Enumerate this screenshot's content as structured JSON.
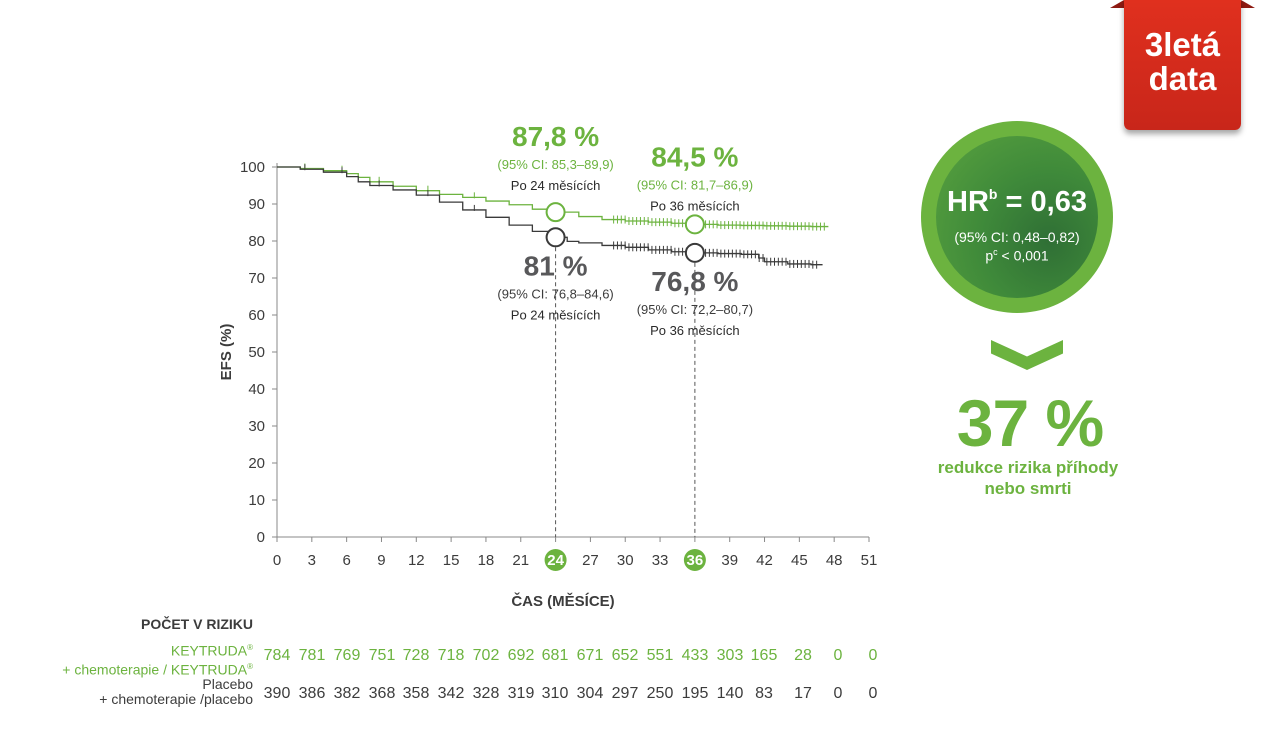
{
  "badge": {
    "line1": "3letá",
    "line2": "data"
  },
  "hr_box": {
    "hr_prefix": "HR",
    "hr_sup": "b",
    "hr_value": " = 0,63",
    "ci": "(95% CI: 0,48–0,82)",
    "p_prefix": "p",
    "p_sup": "c",
    "p_value": " < 0,001"
  },
  "reduction": {
    "value": "37 %",
    "line1": "redukce rizika příhody",
    "line2": "nebo smrti"
  },
  "risk_table": {
    "title": "POČET V RIZIKU",
    "keytruda_label_1": "KEYTRUDA",
    "keytruda_label_1_sup": "®",
    "keytruda_label_2": "+ chemoterapie / KEYTRUDA",
    "keytruda_label_2_sup": "®",
    "placebo_label_1": "Placebo",
    "placebo_label_2": "+ chemoterapie /placebo",
    "keytruda": [
      "784",
      "781",
      "769",
      "751",
      "728",
      "718",
      "702",
      "692",
      "681",
      "671",
      "652",
      "551",
      "433",
      "303",
      "165",
      "28",
      "0",
      "0"
    ],
    "placebo": [
      "390",
      "386",
      "382",
      "368",
      "358",
      "342",
      "328",
      "319",
      "310",
      "304",
      "297",
      "250",
      "195",
      "140",
      "83",
      "17",
      "0",
      "0"
    ]
  },
  "chart_data": {
    "type": "line",
    "xlabel": "ČAS (MĚSÍCE)",
    "ylabel": "EFS (%)",
    "xlim": [
      0,
      51
    ],
    "ylim": [
      0,
      100
    ],
    "x_ticks": [
      "0",
      "3",
      "6",
      "9",
      "12",
      "15",
      "18",
      "21",
      "24",
      "27",
      "30",
      "33",
      "36",
      "39",
      "42",
      "45",
      "48",
      "51"
    ],
    "x_highlight_ticks": [
      "24",
      "36"
    ],
    "y_ticks": [
      "0",
      "10",
      "20",
      "30",
      "40",
      "50",
      "60",
      "70",
      "80",
      "90",
      "100"
    ],
    "colors": {
      "keytruda": "#6cb33f",
      "placebo": "#3a3a3a"
    },
    "series": [
      {
        "key": "keytruda",
        "x": [
          0,
          2,
          4,
          6,
          7,
          8,
          10,
          12,
          14,
          16,
          18,
          20,
          22,
          24,
          26,
          28,
          30,
          32,
          34,
          36,
          38,
          40,
          42,
          44,
          46,
          47.5
        ],
        "y": [
          100,
          99.6,
          99,
          98.2,
          97.2,
          96,
          94.8,
          93.6,
          92.6,
          91.8,
          90.8,
          89.8,
          88.6,
          87.8,
          86.6,
          85.8,
          85.4,
          85.1,
          84.8,
          84.5,
          84.3,
          84.2,
          84.1,
          84.0,
          83.9,
          83.9
        ]
      },
      {
        "key": "placebo",
        "x": [
          0,
          2,
          4,
          6,
          7,
          8,
          10,
          12,
          14,
          16,
          18,
          20,
          22,
          24,
          25,
          26,
          28,
          30,
          32,
          34,
          36,
          38,
          40,
          41.5,
          42,
          44,
          46,
          47
        ],
        "y": [
          100,
          99.4,
          98.6,
          97.4,
          96,
          95,
          93.8,
          92.4,
          90.5,
          88.4,
          86.4,
          84.3,
          82.6,
          81,
          79.9,
          79.5,
          78.8,
          78.3,
          77.6,
          77.1,
          76.8,
          76.6,
          76.4,
          75.4,
          74.4,
          73.8,
          73.6,
          73.6
        ]
      }
    ],
    "annotations": [
      {
        "series": "keytruda",
        "x": 24,
        "y": 87.8,
        "value": "87,8 %",
        "ci": "(95% CI: 85,3–89,9)",
        "label": "Po 24 měsících"
      },
      {
        "series": "keytruda",
        "x": 36,
        "y": 84.5,
        "value": "84,5 %",
        "ci": "(95% CI: 81,7–86,9)",
        "label": "Po 36 měsících"
      },
      {
        "series": "placebo",
        "x": 24,
        "y": 81,
        "value": "81 %",
        "ci": "(95% CI: 76,8–84,6)",
        "label": "Po 24 měsících"
      },
      {
        "series": "placebo",
        "x": 36,
        "y": 76.8,
        "value": "76,8 %",
        "ci": "(95% CI: 72,2–80,7)",
        "label": "Po 36 měsících"
      }
    ]
  }
}
